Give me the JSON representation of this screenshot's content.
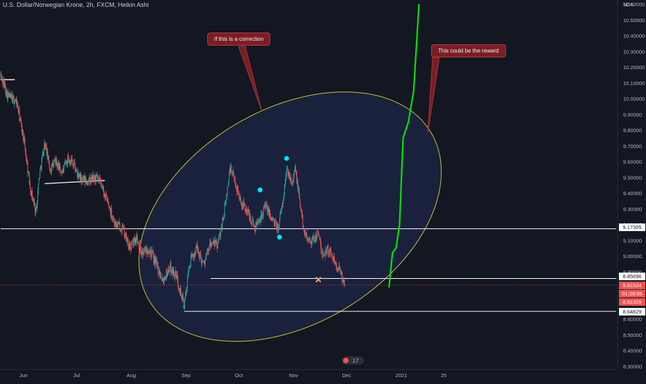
{
  "header": {
    "title": "U.S. Dollar/Norwegian Krone, 2h, FXCM, Heikin Ashi"
  },
  "chart_data": {
    "type": "candlestick",
    "title": "U.S. Dollar/Norwegian Krone, 2h, FXCM, Heikin Ashi",
    "y_unit": "NOK",
    "ylim": [
      8.3,
      10.6
    ],
    "y_ticks": [
      "10.60000",
      "10.50000",
      "10.40000",
      "10.30000",
      "10.20000",
      "10.10000",
      "10.00000",
      "9.90000",
      "9.80000",
      "9.70000",
      "9.60000",
      "9.50000",
      "9.40000",
      "9.30000",
      "9.20000",
      "9.10000",
      "9.00000",
      "8.90000",
      "8.80000",
      "8.70000",
      "8.60000",
      "8.50000",
      "8.40000",
      "8.30000"
    ],
    "x_ticks": [
      {
        "date": "2020-06-01",
        "label": "Jun"
      },
      {
        "date": "2020-07-01",
        "label": "Jul"
      },
      {
        "date": "2020-08-01",
        "label": "Aug"
      },
      {
        "date": "2020-09-01",
        "label": "Sep"
      },
      {
        "date": "2020-10-01",
        "label": "Oct"
      },
      {
        "date": "2020-11-01",
        "label": "Nov"
      },
      {
        "date": "2020-12-01",
        "label": "Dec"
      },
      {
        "date": "2021-01-01",
        "label": "2021"
      },
      {
        "date": "2021-01-25",
        "label": "25"
      }
    ],
    "price_path": [
      [
        "2020-05-19",
        10.15
      ],
      [
        "2020-05-23",
        10.02
      ],
      [
        "2020-05-28",
        9.98
      ],
      [
        "2020-06-01",
        9.75
      ],
      [
        "2020-06-05",
        9.42
      ],
      [
        "2020-06-08",
        9.28
      ],
      [
        "2020-06-10",
        9.52
      ],
      [
        "2020-06-13",
        9.72
      ],
      [
        "2020-06-16",
        9.55
      ],
      [
        "2020-06-19",
        9.6
      ],
      [
        "2020-06-23",
        9.53
      ],
      [
        "2020-06-26",
        9.62
      ],
      [
        "2020-06-29",
        9.6
      ],
      [
        "2020-07-02",
        9.5
      ],
      [
        "2020-07-07",
        9.47
      ],
      [
        "2020-07-12",
        9.5
      ],
      [
        "2020-07-15",
        9.45
      ],
      [
        "2020-07-19",
        9.33
      ],
      [
        "2020-07-23",
        9.2
      ],
      [
        "2020-07-27",
        9.18
      ],
      [
        "2020-07-31",
        9.05
      ],
      [
        "2020-08-04",
        9.12
      ],
      [
        "2020-08-07",
        9.02
      ],
      [
        "2020-08-11",
        9.05
      ],
      [
        "2020-08-15",
        8.95
      ],
      [
        "2020-08-19",
        8.85
      ],
      [
        "2020-08-23",
        8.93
      ],
      [
        "2020-08-27",
        8.86
      ],
      [
        "2020-08-31",
        8.68
      ],
      [
        "2020-09-03",
        8.95
      ],
      [
        "2020-09-07",
        9.05
      ],
      [
        "2020-09-11",
        8.95
      ],
      [
        "2020-09-15",
        9.08
      ],
      [
        "2020-09-19",
        9.07
      ],
      [
        "2020-09-23",
        9.3
      ],
      [
        "2020-09-26",
        9.56
      ],
      [
        "2020-09-28",
        9.5
      ],
      [
        "2020-10-02",
        9.35
      ],
      [
        "2020-10-06",
        9.28
      ],
      [
        "2020-10-10",
        9.18
      ],
      [
        "2020-10-13",
        9.25
      ],
      [
        "2020-10-16",
        9.32
      ],
      [
        "2020-10-19",
        9.25
      ],
      [
        "2020-10-23",
        9.17
      ],
      [
        "2020-10-26",
        9.35
      ],
      [
        "2020-10-28",
        9.55
      ],
      [
        "2020-10-31",
        9.48
      ],
      [
        "2020-11-02",
        9.55
      ],
      [
        "2020-11-06",
        9.22
      ],
      [
        "2020-11-08",
        9.12
      ],
      [
        "2020-11-12",
        9.1
      ],
      [
        "2020-11-15",
        9.15
      ],
      [
        "2020-11-17",
        9.0
      ],
      [
        "2020-11-20",
        9.05
      ],
      [
        "2020-11-24",
        8.98
      ],
      [
        "2020-11-27",
        8.9
      ],
      [
        "2020-11-30",
        8.82
      ]
    ],
    "projection": [
      [
        "2020-12-25",
        8.8
      ],
      [
        "2020-12-27",
        9.02
      ],
      [
        "2020-12-29",
        9.05
      ],
      [
        "2020-12-31",
        9.2
      ],
      [
        "2021-01-02",
        9.75
      ],
      [
        "2021-01-05",
        9.85
      ],
      [
        "2021-01-08",
        10.05
      ],
      [
        "2021-01-11",
        10.6
      ]
    ],
    "horizontal_levels": [
      {
        "value": 9.17305,
        "label": "9.17305",
        "from": "2020-05-19",
        "to": "2021-02-09"
      },
      {
        "value": 8.85696,
        "label": "8.85696",
        "from": "2020-09-15",
        "to": "2021-02-09"
      },
      {
        "value": 8.64829,
        "label": "8.64829",
        "from": "2020-08-31",
        "to": "2021-02-09"
      }
    ],
    "current_price_labels": [
      {
        "value": 8.81524,
        "label": "8.81524"
      },
      {
        "value": null,
        "label": "01:29:56"
      },
      {
        "value": 8.81329,
        "label": "8.81329"
      }
    ],
    "trend_segments": [
      {
        "from": [
          "2020-05-19",
          10.12
        ],
        "to": [
          "2020-05-27",
          10.12
        ]
      },
      {
        "from": [
          "2020-06-13",
          9.46
        ],
        "to": [
          "2020-07-17",
          9.48
        ]
      }
    ],
    "ellipse": {
      "center": [
        "2020-10-30",
        9.25
      ],
      "rx_days": 31,
      "ry_value": 0.74,
      "rotation": -31
    },
    "markers": [
      {
        "date": "2020-10-28",
        "value": 9.62,
        "shape": "dot"
      },
      {
        "date": "2020-10-13",
        "value": 9.42,
        "shape": "dot"
      },
      {
        "date": "2020-10-24",
        "value": 9.12,
        "shape": "dot"
      },
      {
        "date": "2020-11-15",
        "value": 8.85,
        "shape": "cross"
      }
    ],
    "annotations": [
      {
        "text": "If this is a correction",
        "pointer_to": [
          "2020-10-14",
          9.92
        ]
      },
      {
        "text": "This could be the reward",
        "pointer_to": [
          "2021-01-16",
          9.78
        ]
      }
    ],
    "grid": false,
    "colors": {
      "background": "#131722",
      "up": "#26a69a",
      "down": "#ef5350",
      "projection": "#00e600",
      "ellipse_stroke": "#c9c431",
      "ellipse_fill": "#1b2240",
      "marker": "#00e5ff",
      "callout": "#7a1e24",
      "level_line": "#ffffff"
    }
  },
  "annotations": {
    "correction_text": "If this is a correction",
    "reward_text": "This could be the reward"
  },
  "price_scale": {
    "labels": [
      "9.17305",
      "8.85696",
      "8.81524",
      "01:29:56",
      "8.81329",
      "8.64829"
    ]
  },
  "branding": {
    "logo_text": "17"
  }
}
